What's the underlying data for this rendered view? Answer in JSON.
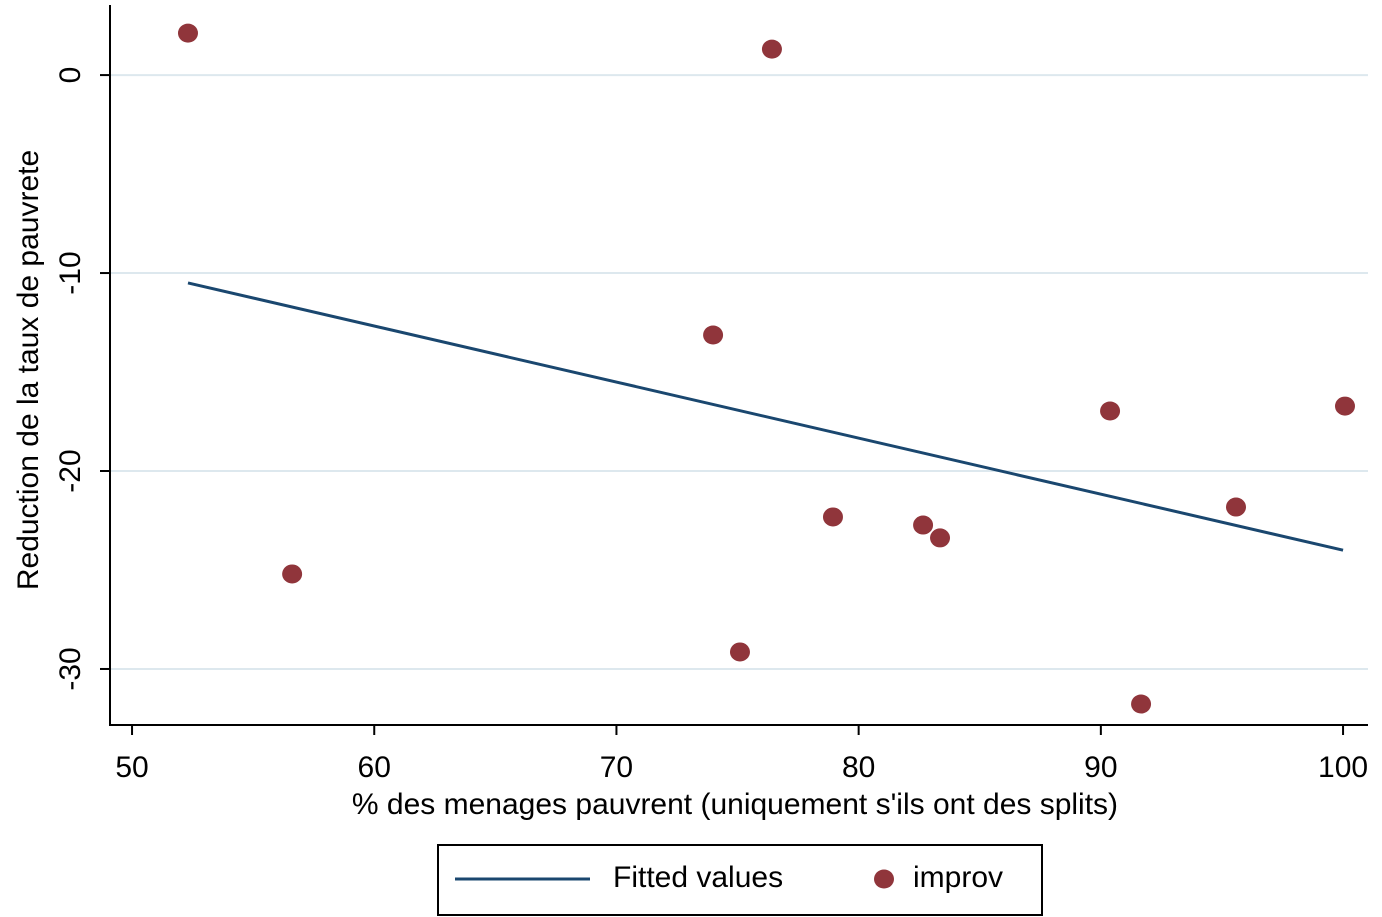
{
  "chart_data": {
    "type": "scatter",
    "x_label": "% des menages pauvrent (uniquement s'ils ont des splits)",
    "y_label": "Reduction de la taux de pauvrete",
    "xlim": [
      49.09,
      101.03
    ],
    "ylim": [
      -32.83,
      3.54
    ],
    "xticks": [
      50,
      60,
      70,
      80,
      90,
      100
    ],
    "yticks": [
      -30,
      -20,
      -10,
      0
    ],
    "grid": true,
    "legend": "bottom",
    "series": [
      {
        "name": "Fitted values",
        "type": "line",
        "color": "#1a476f",
        "x": [
          52.31,
          100.0
        ],
        "values": [
          -10.5,
          -24.0
        ]
      },
      {
        "name": "improv",
        "type": "scatter",
        "color": "#90353b",
        "x": [
          52.31,
          76.42,
          73.99,
          90.38,
          100.08,
          95.58,
          78.94,
          82.66,
          83.36,
          56.61,
          75.1,
          91.66
        ],
        "values": [
          2.12,
          1.31,
          -13.13,
          -16.97,
          -16.72,
          -21.82,
          -22.32,
          -22.73,
          -23.38,
          -25.2,
          -29.14,
          -31.77
        ]
      }
    ]
  }
}
